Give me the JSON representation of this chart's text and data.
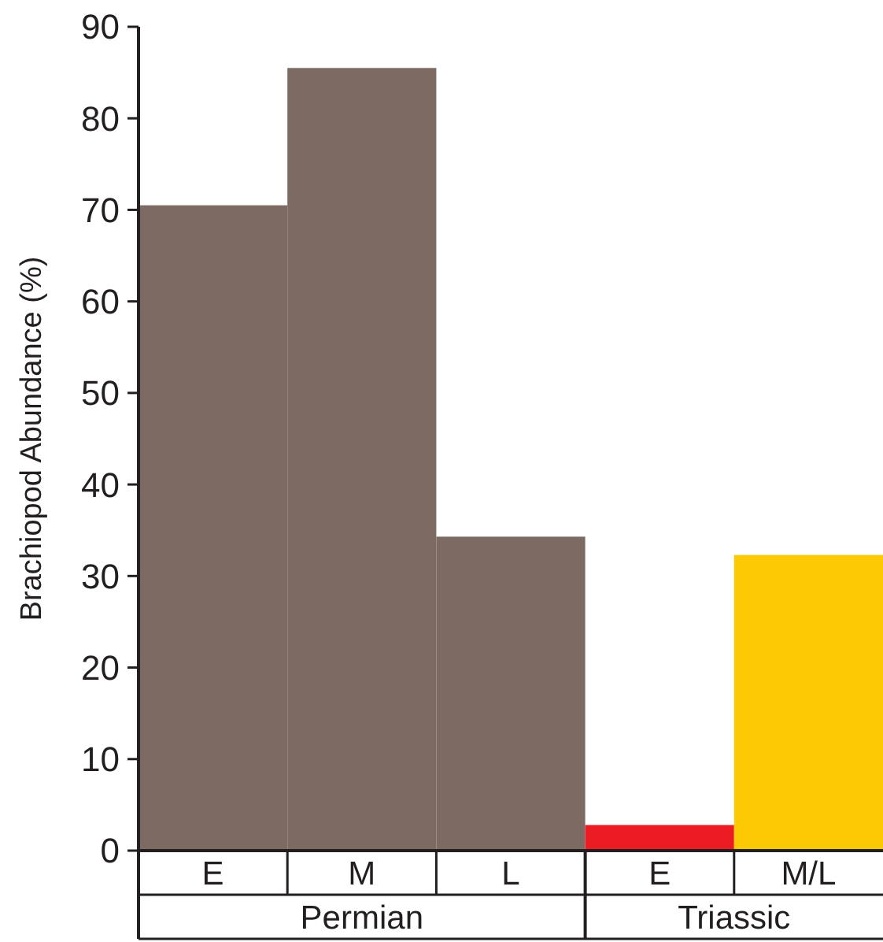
{
  "chart_data": {
    "type": "bar",
    "ylabel": "Brachiopod Abundance (%)",
    "categories": [
      "E",
      "M",
      "L",
      "E",
      "M/L"
    ],
    "values": [
      70.5,
      85.5,
      34.3,
      2.8,
      32.3
    ],
    "colors": [
      "#7d6a63",
      "#7d6a63",
      "#7d6a63",
      "#ec1c24",
      "#fdc905"
    ],
    "ylim": [
      0,
      90
    ],
    "yticks": [
      0,
      10,
      20,
      30,
      40,
      50,
      60,
      70,
      80,
      90
    ],
    "annotations": [
      "Permian",
      "Triassic"
    ]
  }
}
